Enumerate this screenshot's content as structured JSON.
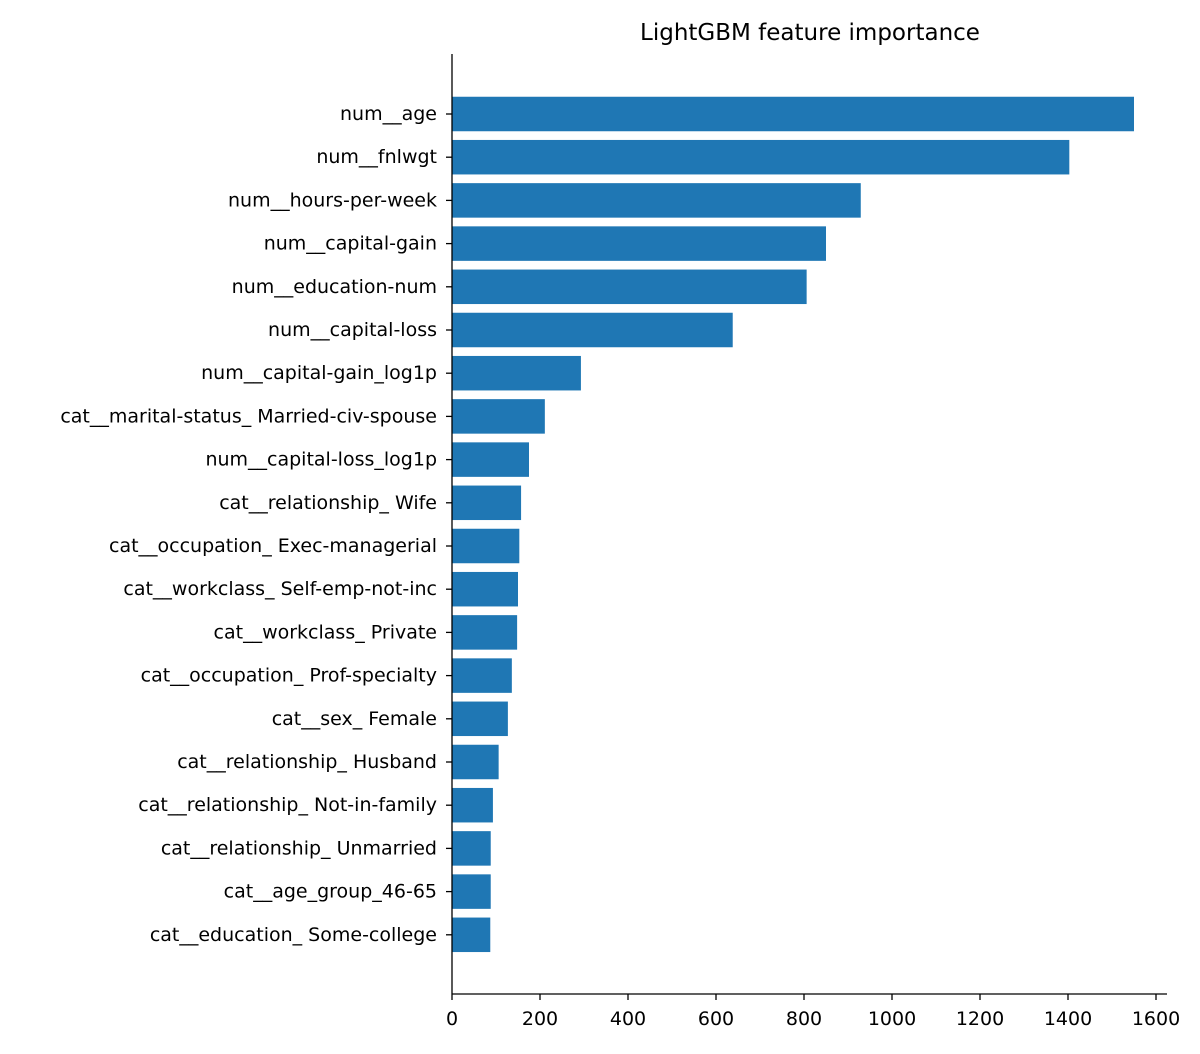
{
  "colors": {
    "bar": "#1f77b4",
    "axis": "#000000",
    "background": "#ffffff"
  },
  "chart_data": {
    "type": "bar",
    "orientation": "horizontal",
    "title": "LightGBM feature importance",
    "xlabel": "",
    "ylabel": "",
    "xlim": [
      0,
      1625
    ],
    "xticks": [
      0,
      200,
      400,
      600,
      800,
      1000,
      1200,
      1400,
      1600
    ],
    "grid": false,
    "categories": [
      "num__age",
      "num__fnlwgt",
      "num__hours-per-week",
      "num__capital-gain",
      "num__education-num",
      "num__capital-loss",
      "num__capital-gain_log1p",
      "cat__marital-status_ Married-civ-spouse",
      "num__capital-loss_log1p",
      "cat__relationship_ Wife",
      "cat__occupation_ Exec-managerial",
      "cat__workclass_ Self-emp-not-inc",
      "cat__workclass_ Private",
      "cat__occupation_ Prof-specialty",
      "cat__sex_ Female",
      "cat__relationship_ Husband",
      "cat__relationship_ Not-in-family",
      "cat__relationship_ Unmarried",
      "cat__age_group_46-65",
      "cat__education_ Some-college"
    ],
    "values": [
      1550,
      1403,
      929,
      850,
      806,
      638,
      293,
      211,
      175,
      157,
      153,
      150,
      148,
      136,
      127,
      106,
      93,
      88,
      88,
      87
    ]
  }
}
